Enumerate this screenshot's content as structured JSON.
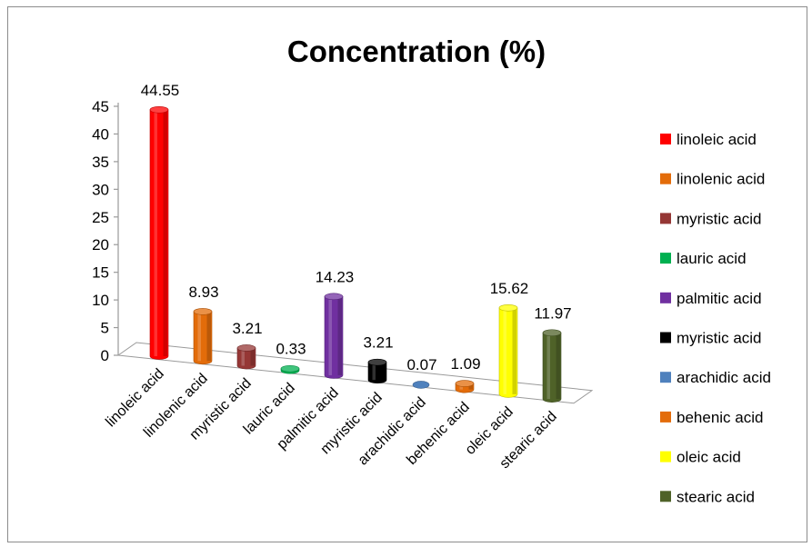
{
  "chart_data": {
    "type": "bar",
    "title": "Concentration (%)",
    "categories": [
      "linoleic acid",
      "linolenic acid",
      "myristic acid",
      "lauric acid",
      "palmitic acid",
      "myristic acid",
      "arachidic acid",
      "behenic acid",
      "oleic acid",
      "stearic acid"
    ],
    "values": [
      44.55,
      8.93,
      3.21,
      0.33,
      14.23,
      3.21,
      0.07,
      1.09,
      15.62,
      11.97
    ],
    "data_labels": [
      "44.55",
      "8.93",
      "3.21",
      "0.33",
      "14.23",
      "3.21",
      "0.07",
      "1.09",
      "15.62",
      "11.97"
    ],
    "colors": [
      "#ff0000",
      "#e36c0a",
      "#953735",
      "#00b050",
      "#7030a0",
      "#000000",
      "#4f81bd",
      "#e36c0a",
      "#ffff00",
      "#4f6228"
    ],
    "ylim": [
      0,
      45
    ],
    "yticks": [
      "0",
      "5",
      "10",
      "15",
      "20",
      "25",
      "30",
      "35",
      "40",
      "45"
    ],
    "ytick_values": [
      0,
      5,
      10,
      15,
      20,
      25,
      30,
      35,
      40,
      45
    ],
    "xlabel": "",
    "ylabel": "",
    "legend_position": "right",
    "bar_shape": "3d-cylinder",
    "grid": false
  }
}
